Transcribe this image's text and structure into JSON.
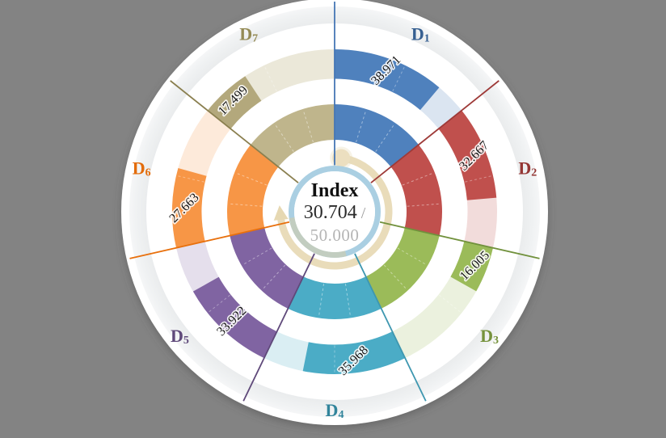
{
  "theme": {
    "background": "#838383",
    "disc": "#ffffff",
    "outer_ring_inner": "#e8eaeb",
    "outer_ring_outer": "#f5f6f7",
    "gauge_arc": "#e9dcba",
    "gauge_dot": "#ecdfc0",
    "gauge_arrow": "#e6d8b2",
    "center_ring": "#aacfe2",
    "center_ring_accent": "#c9ccb4",
    "title_color": "#111111",
    "value_color": "#2b2b2b",
    "separator_color": "#9f9f9f",
    "max_color": "#b5b5b5",
    "value_label_color": "#161616",
    "subdivider_color": "#ffffff"
  },
  "chart_data": {
    "type": "pie",
    "subtype": "circular multi-ring indicator gauge, 7 equal sectors clockwise from 12 o'clock; each sector has an outer two-tone value ring (filled vs pale remainder out of 50) and a solid inner ring",
    "title": "Index",
    "max_value": 50,
    "center": {
      "title": "Index",
      "value": "30.704",
      "separator": "/",
      "max": "50.000"
    },
    "categories": [
      "D1",
      "D2",
      "D3",
      "D4",
      "D5",
      "D6",
      "D7"
    ],
    "values": [
      38.971,
      32.667,
      16.005,
      35.968,
      33.922,
      27.663,
      17.499
    ],
    "sectors": [
      {
        "name": "D",
        "subscript": "1",
        "value": 38.971,
        "value_label": "38.971",
        "fill": "#4f81bd",
        "pale": "#dbe5f1",
        "dark": "#365f91",
        "inner": "#4f81bd",
        "line": "#4576b5"
      },
      {
        "name": "D",
        "subscript": "2",
        "value": 32.667,
        "value_label": "32.667",
        "fill": "#c0504d",
        "pale": "#f2dcdb",
        "dark": "#943634",
        "inner": "#c0504d",
        "line": "#9e3a38"
      },
      {
        "name": "D",
        "subscript": "3",
        "value": 16.005,
        "value_label": "16.005",
        "fill": "#9bbb59",
        "pale": "#ebf1de",
        "dark": "#76923c",
        "inner": "#9bbb59",
        "line": "#71913c"
      },
      {
        "name": "D",
        "subscript": "4",
        "value": 35.968,
        "value_label": "35.968",
        "fill": "#4bacc6",
        "pale": "#daeef3",
        "dark": "#31849b",
        "inner": "#4bacc6",
        "line": "#3e97b0"
      },
      {
        "name": "D",
        "subscript": "5",
        "value": 33.922,
        "value_label": "33.922",
        "fill": "#8064a2",
        "pale": "#e5dfec",
        "dark": "#5f497a",
        "inner": "#8064a2",
        "line": "#5f497a"
      },
      {
        "name": "D",
        "subscript": "6",
        "value": 27.663,
        "value_label": "27.663",
        "fill": "#f79646",
        "pale": "#fdeada",
        "dark": "#e36c0a",
        "inner": "#f79646",
        "line": "#e8700d"
      },
      {
        "name": "D",
        "subscript": "7",
        "value": 17.499,
        "value_label": "17.499",
        "fill": "#b3a87c",
        "pale": "#ebe8d9",
        "dark": "#948a54",
        "inner": "#bfb58c",
        "line": "#8a7f4f"
      }
    ],
    "layout": {
      "direction": "clockwise",
      "start_angle_deg": 0,
      "sector_span_deg": 51.43,
      "rings": [
        "outer-gray-track",
        "value-ring",
        "inner-ring"
      ],
      "legend": "none",
      "grid": "off"
    }
  }
}
